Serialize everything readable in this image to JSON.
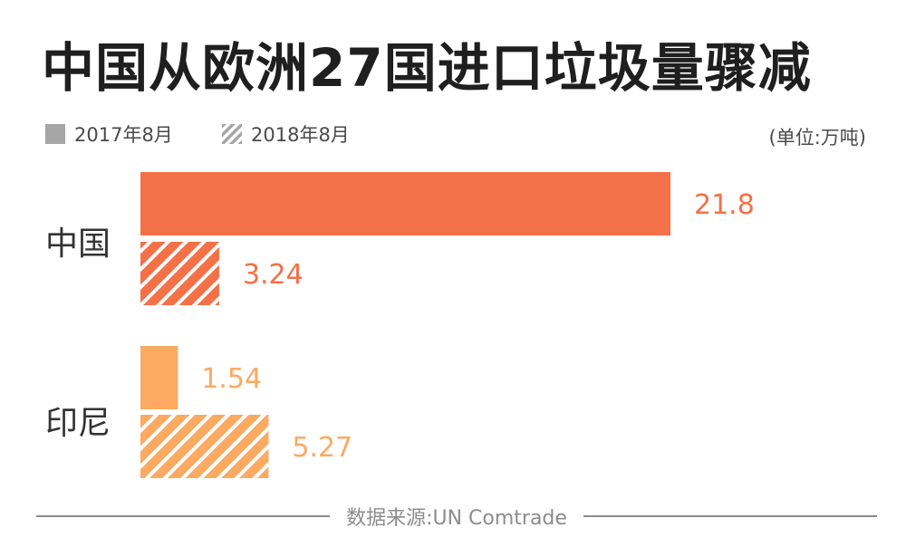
{
  "title": "中国从欧洲27国进口垃圾量骤减",
  "unit": "(单位:万吨)",
  "source": "数据来源:UN Comtrade",
  "legend": [
    {
      "label": "2017年8月",
      "style": "solid",
      "color": "#a6a6a6"
    },
    {
      "label": "2018年8月",
      "style": "hatched",
      "color": "#a6a6a6"
    }
  ],
  "chart_data": {
    "type": "bar",
    "orientation": "horizontal",
    "categories": [
      "中国",
      "印尼"
    ],
    "series": [
      {
        "name": "2017年8月",
        "values": [
          21.8,
          1.54
        ]
      },
      {
        "name": "2018年8月",
        "values": [
          3.24,
          5.27
        ]
      }
    ],
    "data_labels": [
      [
        "21.8",
        "3.24"
      ],
      [
        "1.54",
        "5.27"
      ]
    ],
    "category_colors": [
      "#f47046",
      "#fcaa61"
    ],
    "title": "中国从欧洲27国进口垃圾量骤减",
    "xlabel": "",
    "ylabel": "",
    "xlim": [
      0,
      21.8
    ],
    "grid": false,
    "legend_position": "top-left"
  }
}
